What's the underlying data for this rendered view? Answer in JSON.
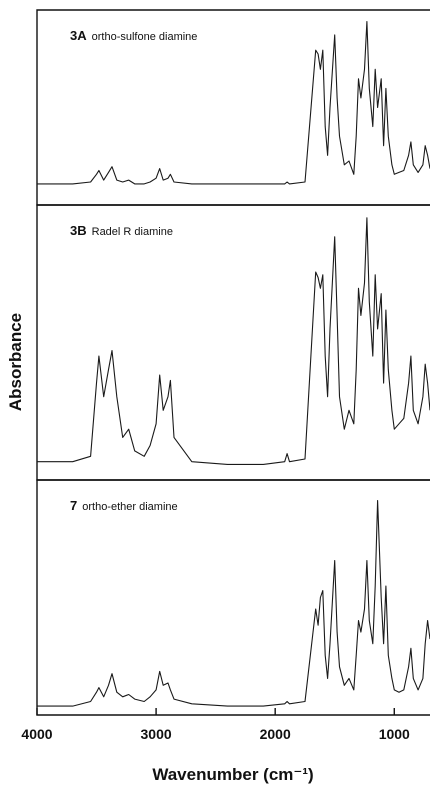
{
  "chart_data": [
    {
      "type": "line",
      "sample": "3A",
      "title": "ortho-sulfone diamine",
      "xlim": [
        4000,
        700
      ],
      "ylim": [
        0,
        1
      ],
      "x": [
        4000,
        3700,
        3550,
        3500,
        3480,
        3440,
        3400,
        3370,
        3330,
        3280,
        3230,
        3180,
        3100,
        3050,
        3000,
        2970,
        2940,
        2900,
        2880,
        2850,
        2700,
        2400,
        2100,
        1920,
        1900,
        1880,
        1750,
        1660,
        1640,
        1620,
        1600,
        1580,
        1560,
        1540,
        1500,
        1480,
        1460,
        1420,
        1380,
        1340,
        1320,
        1300,
        1280,
        1250,
        1230,
        1210,
        1180,
        1160,
        1140,
        1110,
        1090,
        1070,
        1050,
        1020,
        1000,
        960,
        920,
        880,
        860,
        840,
        800,
        760,
        740,
        720,
        700
      ],
      "values": [
        0.1,
        0.1,
        0.11,
        0.15,
        0.17,
        0.12,
        0.16,
        0.19,
        0.12,
        0.11,
        0.12,
        0.1,
        0.1,
        0.11,
        0.13,
        0.18,
        0.12,
        0.13,
        0.15,
        0.11,
        0.1,
        0.1,
        0.1,
        0.1,
        0.11,
        0.1,
        0.11,
        0.8,
        0.78,
        0.7,
        0.8,
        0.4,
        0.25,
        0.5,
        0.88,
        0.55,
        0.35,
        0.2,
        0.22,
        0.15,
        0.35,
        0.65,
        0.55,
        0.7,
        0.95,
        0.6,
        0.4,
        0.7,
        0.5,
        0.65,
        0.3,
        0.6,
        0.35,
        0.2,
        0.15,
        0.16,
        0.17,
        0.25,
        0.32,
        0.2,
        0.16,
        0.2,
        0.3,
        0.25,
        0.18
      ],
      "color": "#1a1a1a"
    },
    {
      "type": "line",
      "sample": "3B",
      "title": "Radel R diamine",
      "ylabel": "Absorbance",
      "xlim": [
        4000,
        700
      ],
      "ylim": [
        0,
        1
      ],
      "x": [
        4000,
        3700,
        3550,
        3500,
        3480,
        3440,
        3400,
        3370,
        3330,
        3280,
        3230,
        3180,
        3100,
        3050,
        3000,
        2970,
        2940,
        2900,
        2880,
        2850,
        2700,
        2400,
        2100,
        1920,
        1900,
        1880,
        1750,
        1660,
        1640,
        1620,
        1600,
        1580,
        1560,
        1540,
        1500,
        1480,
        1460,
        1420,
        1380,
        1340,
        1320,
        1300,
        1280,
        1250,
        1230,
        1210,
        1180,
        1160,
        1140,
        1110,
        1090,
        1070,
        1050,
        1020,
        1000,
        960,
        920,
        880,
        860,
        840,
        800,
        760,
        740,
        720,
        700
      ],
      "values": [
        0.06,
        0.06,
        0.08,
        0.35,
        0.45,
        0.3,
        0.4,
        0.47,
        0.3,
        0.15,
        0.18,
        0.1,
        0.08,
        0.12,
        0.2,
        0.38,
        0.25,
        0.3,
        0.36,
        0.15,
        0.06,
        0.05,
        0.05,
        0.06,
        0.09,
        0.06,
        0.07,
        0.76,
        0.74,
        0.7,
        0.75,
        0.45,
        0.3,
        0.55,
        0.89,
        0.6,
        0.3,
        0.18,
        0.25,
        0.2,
        0.4,
        0.7,
        0.6,
        0.72,
        0.96,
        0.65,
        0.45,
        0.75,
        0.55,
        0.68,
        0.35,
        0.62,
        0.4,
        0.25,
        0.18,
        0.2,
        0.22,
        0.35,
        0.45,
        0.25,
        0.2,
        0.3,
        0.42,
        0.35,
        0.25
      ],
      "color": "#1a1a1a"
    },
    {
      "type": "line",
      "sample": "7",
      "title": "ortho-ether diamine",
      "xlabel": "Wavenumber (cm⁻¹)",
      "xlim": [
        4000,
        700
      ],
      "ylim": [
        0,
        1
      ],
      "xticks": [
        4000,
        3000,
        2000,
        1000
      ],
      "x": [
        4000,
        3700,
        3550,
        3500,
        3480,
        3440,
        3400,
        3370,
        3330,
        3280,
        3230,
        3180,
        3100,
        3050,
        3000,
        2970,
        2940,
        2900,
        2880,
        2850,
        2700,
        2400,
        2100,
        1920,
        1900,
        1880,
        1750,
        1660,
        1640,
        1620,
        1600,
        1580,
        1560,
        1540,
        1500,
        1480,
        1460,
        1420,
        1380,
        1340,
        1320,
        1300,
        1280,
        1250,
        1230,
        1210,
        1180,
        1160,
        1140,
        1110,
        1090,
        1070,
        1050,
        1020,
        1000,
        960,
        920,
        880,
        860,
        840,
        800,
        760,
        740,
        720,
        700
      ],
      "values": [
        0.03,
        0.03,
        0.05,
        0.09,
        0.11,
        0.07,
        0.12,
        0.17,
        0.09,
        0.07,
        0.08,
        0.06,
        0.05,
        0.07,
        0.1,
        0.18,
        0.12,
        0.13,
        0.1,
        0.06,
        0.04,
        0.03,
        0.03,
        0.04,
        0.05,
        0.04,
        0.05,
        0.45,
        0.38,
        0.5,
        0.53,
        0.25,
        0.15,
        0.3,
        0.66,
        0.35,
        0.2,
        0.12,
        0.15,
        0.1,
        0.25,
        0.4,
        0.35,
        0.45,
        0.66,
        0.4,
        0.3,
        0.55,
        0.92,
        0.5,
        0.3,
        0.55,
        0.25,
        0.15,
        0.1,
        0.09,
        0.1,
        0.2,
        0.28,
        0.15,
        0.1,
        0.15,
        0.3,
        0.4,
        0.32
      ],
      "color": "#1a1a1a"
    }
  ]
}
